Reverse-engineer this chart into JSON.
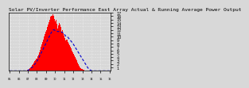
{
  "title": "Solar PV/Inverter Performance East Array Actual & Running Average Power Output",
  "subtitle": "East Array",
  "bg_color": "#d8d8d8",
  "plot_bg_color": "#d8d8d8",
  "bar_color": "#ff0000",
  "line_color": "#0000cc",
  "ylim": [
    0,
    17
  ],
  "yticks": [
    1,
    2,
    3,
    4,
    5,
    6,
    7,
    8,
    9,
    10,
    11,
    12,
    13,
    14,
    15,
    16,
    17
  ],
  "n_points": 120,
  "bar_values": [
    0,
    0,
    0,
    0,
    0,
    0,
    0,
    0,
    0,
    0,
    0,
    0,
    0,
    0,
    0,
    0,
    0,
    0,
    0,
    0,
    0.1,
    0.2,
    0.3,
    0.5,
    0.7,
    1.0,
    1.3,
    1.6,
    2.0,
    2.4,
    2.8,
    3.2,
    3.6,
    4.2,
    4.8,
    5.5,
    6.2,
    7.0,
    7.8,
    8.5,
    9.2,
    10.0,
    10.8,
    11.5,
    12.0,
    12.8,
    13.5,
    14.2,
    15.0,
    15.8,
    16.2,
    16.5,
    16.0,
    15.2,
    14.5,
    15.0,
    13.8,
    12.5,
    13.2,
    14.0,
    13.5,
    12.8,
    11.5,
    12.0,
    11.0,
    10.2,
    9.5,
    8.8,
    9.2,
    8.5,
    8.0,
    7.5,
    7.0,
    6.5,
    6.0,
    5.5,
    5.0,
    4.5,
    4.0,
    3.5,
    3.0,
    2.5,
    2.0,
    1.5,
    1.0,
    0.8,
    0.5,
    0.3,
    0.2,
    0.1,
    0.05,
    0,
    0,
    0,
    0,
    0,
    0,
    0,
    0,
    0,
    0,
    0,
    0,
    0,
    0,
    0,
    0,
    0,
    0,
    0,
    0,
    0,
    0,
    0,
    0,
    0,
    0,
    0,
    0,
    0
  ],
  "avg_values": [
    0,
    0,
    0,
    0,
    0,
    0,
    0,
    0,
    0,
    0,
    0,
    0,
    0,
    0,
    0,
    0,
    0,
    0,
    0,
    0,
    0.05,
    0.1,
    0.2,
    0.35,
    0.5,
    0.7,
    0.9,
    1.1,
    1.4,
    1.7,
    2.0,
    2.3,
    2.7,
    3.1,
    3.5,
    4.0,
    4.5,
    5.0,
    5.5,
    6.0,
    6.5,
    7.0,
    7.5,
    8.0,
    8.5,
    9.0,
    9.5,
    10.0,
    10.5,
    11.0,
    11.4,
    11.8,
    12.0,
    12.0,
    11.8,
    11.8,
    11.7,
    11.5,
    11.5,
    11.6,
    11.6,
    11.5,
    11.3,
    11.2,
    11.0,
    10.7,
    10.4,
    10.1,
    10.1,
    9.9,
    9.6,
    9.3,
    9.0,
    8.7,
    8.4,
    8.1,
    7.7,
    7.3,
    6.9,
    6.5,
    6.1,
    5.7,
    5.3,
    4.9,
    4.5,
    4.1,
    3.7,
    3.3,
    2.9,
    2.5,
    2.1,
    1.7,
    1.3,
    0.9,
    0.6,
    0.4,
    0.2,
    0.1,
    0.05,
    0,
    0,
    0,
    0,
    0,
    0,
    0,
    0,
    0,
    0,
    0,
    0,
    0,
    0,
    0,
    0,
    0,
    0,
    0,
    0,
    0
  ],
  "xlabel_count": 12,
  "title_fontsize": 4.5,
  "tick_fontsize": 3.5
}
